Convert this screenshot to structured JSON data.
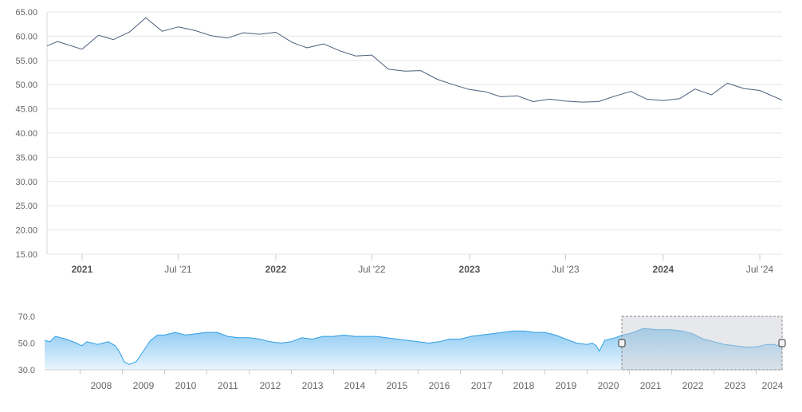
{
  "colors": {
    "main_line": "#4a5e7a",
    "nav_line": "#2f9ee6",
    "nav_fill_top": "#8cc9f2",
    "nav_fill_bottom": "#e9f5fd",
    "grid": "#e6e6e6",
    "selection_mask": "#c8cdd3"
  },
  "chart_data": [
    {
      "type": "line",
      "role": "main",
      "grid": true,
      "ylim": [
        15,
        65
      ],
      "yticks": [
        "15.00",
        "20.00",
        "25.00",
        "30.00",
        "35.00",
        "40.00",
        "45.00",
        "50.00",
        "55.00",
        "60.00",
        "65.00"
      ],
      "xlim": [
        "2020-10-27",
        "2024-08-12"
      ],
      "xticks": [
        {
          "date": "2021-01-01",
          "label": "2021",
          "major": true
        },
        {
          "date": "2021-07-01",
          "label": "Jul '21",
          "major": false
        },
        {
          "date": "2022-01-01",
          "label": "2022",
          "major": true
        },
        {
          "date": "2022-07-01",
          "label": "Jul '22",
          "major": false
        },
        {
          "date": "2023-01-01",
          "label": "2023",
          "major": true
        },
        {
          "date": "2023-07-01",
          "label": "Jul '23",
          "major": false
        },
        {
          "date": "2024-01-01",
          "label": "2024",
          "major": true
        },
        {
          "date": "2024-07-01",
          "label": "Jul '24",
          "major": false
        }
      ],
      "series": [
        {
          "x": [
            "2020-10-27",
            "2020-11-16",
            "2021-01-01",
            "2021-02-01",
            "2021-03-01",
            "2021-04-01",
            "2021-05-01",
            "2021-06-01",
            "2021-07-01",
            "2021-08-01",
            "2021-09-01",
            "2021-10-01",
            "2021-11-01",
            "2021-12-01",
            "2022-01-01",
            "2022-02-01",
            "2022-03-01",
            "2022-04-01",
            "2022-05-01",
            "2022-06-01",
            "2022-07-01",
            "2022-08-01",
            "2022-09-01",
            "2022-10-01",
            "2022-11-01",
            "2022-12-01",
            "2023-01-01",
            "2023-02-01",
            "2023-03-01",
            "2023-04-01",
            "2023-05-01",
            "2023-06-01",
            "2023-07-01",
            "2023-08-01",
            "2023-09-01",
            "2023-10-01",
            "2023-11-01",
            "2023-12-01",
            "2024-01-01",
            "2024-02-01",
            "2024-03-01",
            "2024-04-01",
            "2024-05-01",
            "2024-06-01",
            "2024-07-01",
            "2024-08-12"
          ],
          "y": [
            58.0,
            58.9,
            57.3,
            60.2,
            59.3,
            60.9,
            63.8,
            61.0,
            61.9,
            61.2,
            60.1,
            59.6,
            60.7,
            60.4,
            60.8,
            58.7,
            57.6,
            58.4,
            57.0,
            55.9,
            56.1,
            53.2,
            52.8,
            52.9,
            51.1,
            50.0,
            49.0,
            48.5,
            47.5,
            47.7,
            46.5,
            47.0,
            46.6,
            46.4,
            46.5,
            47.6,
            48.6,
            47.0,
            46.7,
            47.1,
            49.1,
            47.9,
            50.3,
            49.2,
            48.8,
            46.8
          ]
        }
      ]
    },
    {
      "type": "area",
      "role": "navigator",
      "grid": false,
      "ylim": [
        30,
        70
      ],
      "yticks": [
        "30.0",
        "50.0",
        "70.0"
      ],
      "xlim": [
        "2007-03-01",
        "2024-08-12"
      ],
      "xticks": [
        "2008",
        "2009",
        "2010",
        "2011",
        "2012",
        "2013",
        "2014",
        "2015",
        "2016",
        "2017",
        "2018",
        "2019",
        "2020",
        "2021",
        "2022",
        "2023",
        "2024"
      ],
      "selection": [
        "2020-10-27",
        "2024-08-12"
      ],
      "series": [
        {
          "x": [
            "2007-03-01",
            "2007-04-15",
            "2007-06-01",
            "2007-09-01",
            "2007-12-01",
            "2008-01-15",
            "2008-03-01",
            "2008-06-01",
            "2008-09-01",
            "2008-11-01",
            "2008-12-15",
            "2009-01-15",
            "2009-03-01",
            "2009-05-01",
            "2009-07-01",
            "2009-09-01",
            "2009-11-01",
            "2010-01-01",
            "2010-04-01",
            "2010-07-01",
            "2010-10-01",
            "2011-01-01",
            "2011-04-01",
            "2011-07-01",
            "2011-10-01",
            "2012-01-01",
            "2012-04-01",
            "2012-07-01",
            "2012-10-01",
            "2013-01-01",
            "2013-04-01",
            "2013-07-01",
            "2013-10-01",
            "2014-01-01",
            "2014-04-01",
            "2014-07-01",
            "2014-10-01",
            "2015-01-01",
            "2015-04-01",
            "2015-07-01",
            "2015-10-01",
            "2016-01-01",
            "2016-04-01",
            "2016-07-01",
            "2016-10-01",
            "2017-01-01",
            "2017-04-01",
            "2017-07-01",
            "2017-10-01",
            "2018-01-01",
            "2018-04-01",
            "2018-07-01",
            "2018-10-01",
            "2019-01-01",
            "2019-04-01",
            "2019-07-01",
            "2019-10-01",
            "2020-01-01",
            "2020-02-15",
            "2020-03-20",
            "2020-04-15",
            "2020-06-01",
            "2020-09-01",
            "2020-11-01",
            "2021-01-01",
            "2021-05-01",
            "2021-09-01",
            "2022-01-01",
            "2022-04-01",
            "2022-07-01",
            "2022-10-01",
            "2023-01-01",
            "2023-04-01",
            "2023-07-01",
            "2023-10-01",
            "2024-01-01",
            "2024-04-01",
            "2024-06-01",
            "2024-08-12"
          ],
          "y": [
            52,
            51,
            55,
            53,
            50,
            48,
            51,
            49,
            51,
            48,
            42,
            36,
            34,
            36,
            44,
            52,
            56,
            56,
            58,
            56,
            57,
            58,
            58,
            55,
            54,
            54,
            53,
            51,
            50,
            51,
            54,
            53,
            55,
            55,
            56,
            55,
            55,
            55,
            54,
            53,
            52,
            51,
            50,
            51,
            53,
            53,
            55,
            56,
            57,
            58,
            59,
            59,
            58,
            58,
            56,
            53,
            50,
            49,
            50,
            48,
            44,
            52,
            54,
            56,
            57,
            61,
            60,
            60,
            59,
            57,
            53,
            51,
            49,
            48,
            47,
            47,
            49,
            49,
            47
          ]
        }
      ]
    }
  ]
}
